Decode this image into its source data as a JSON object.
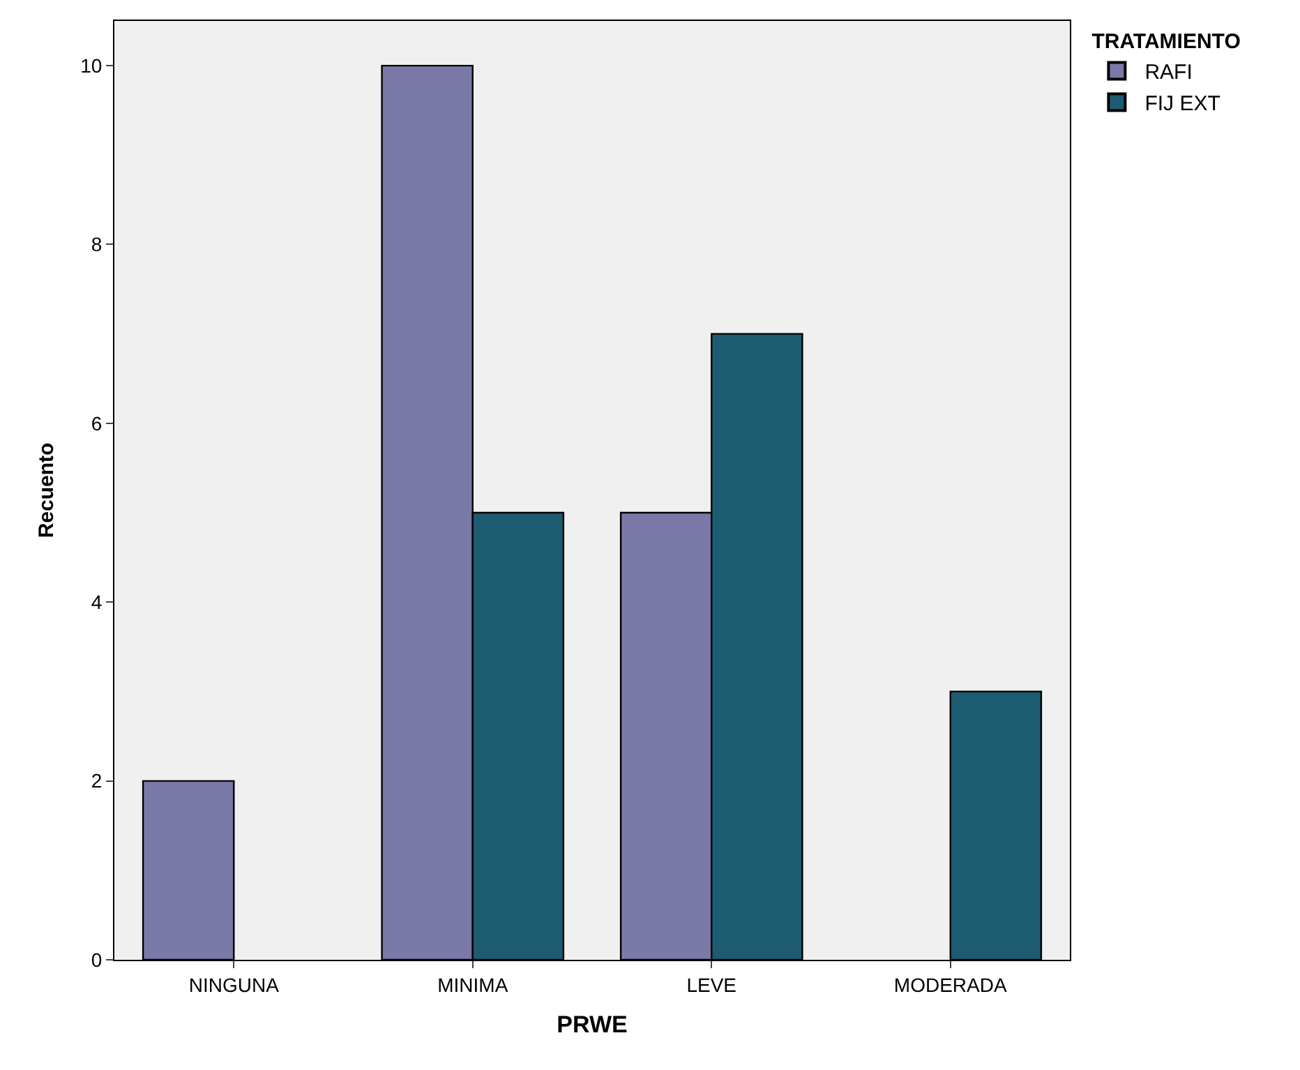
{
  "chart_data": {
    "type": "bar",
    "xlabel": "PRWE",
    "ylabel": "Recuento",
    "legend_title": "TRATAMIENTO",
    "legend": "top right",
    "categories": [
      "NINGUNA",
      "MINIMA",
      "LEVE",
      "MODERADA"
    ],
    "series": [
      {
        "name": "RAFI",
        "color": "#7a79a8",
        "values": [
          2,
          10,
          5,
          null
        ]
      },
      {
        "name": "FIJ EXT",
        "color": "#1d5c70",
        "values": [
          null,
          5,
          7,
          3
        ]
      }
    ],
    "ylim": [
      0,
      10.5
    ],
    "yticks": [
      0,
      2,
      4,
      6,
      8,
      10
    ],
    "grid": false
  }
}
